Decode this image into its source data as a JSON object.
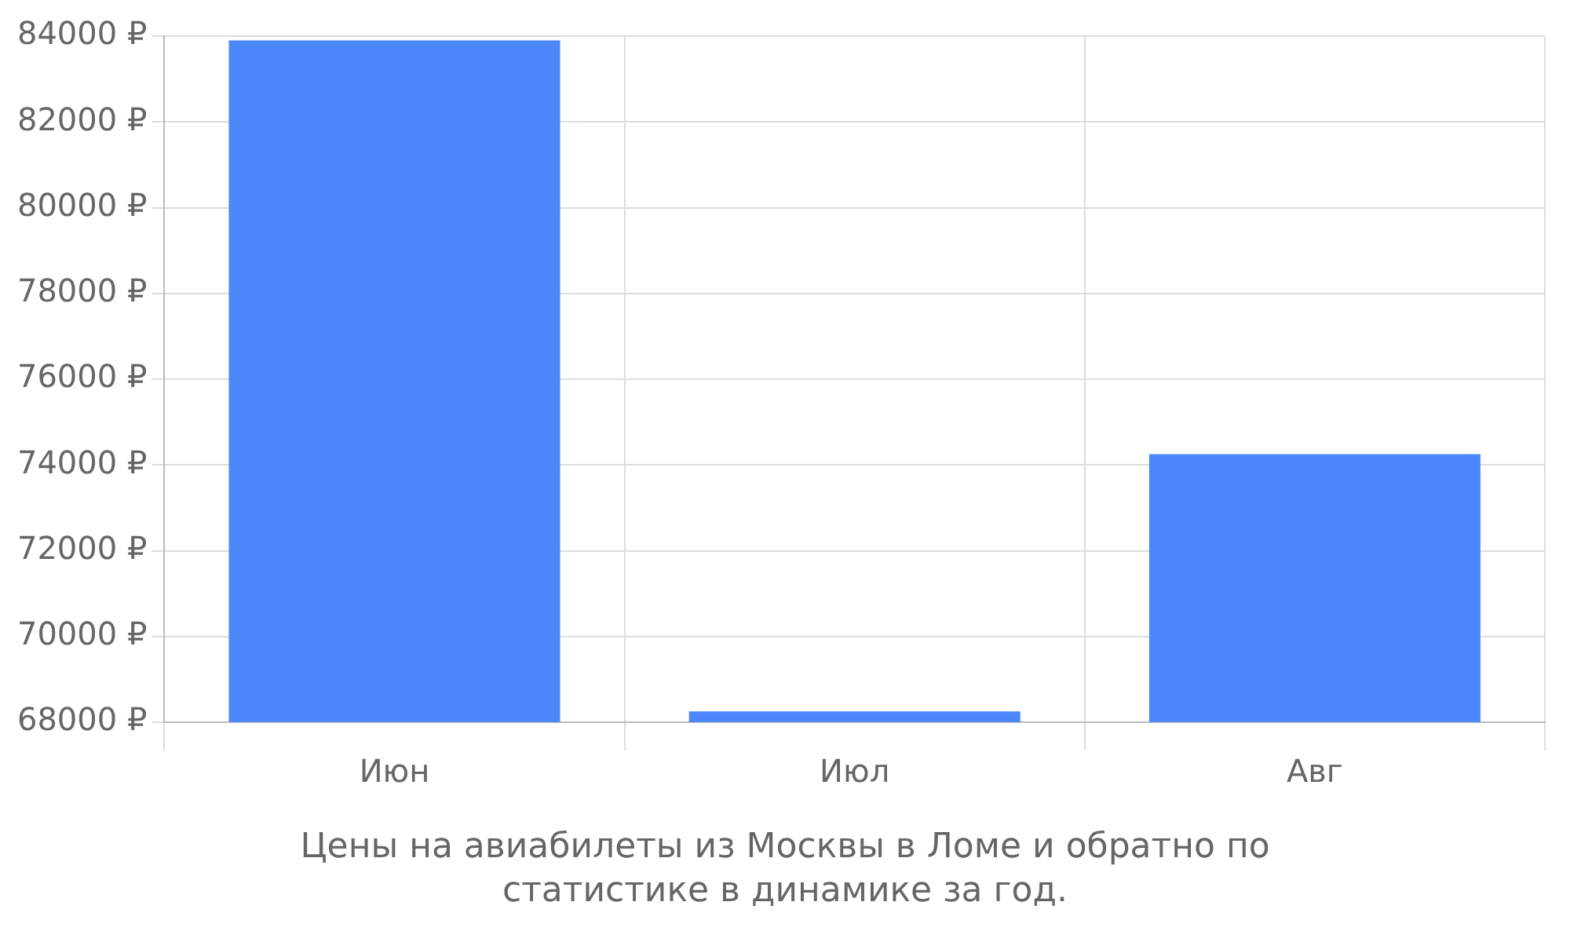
{
  "chart_data": {
    "type": "bar",
    "categories": [
      "Июн",
      "Июл",
      "Авг"
    ],
    "values": [
      83900,
      68250,
      74250
    ],
    "color": "#4d88fb",
    "ylim": [
      68000,
      84000
    ],
    "yticks": [
      {
        "value": 68000,
        "label": "68000 ₽"
      },
      {
        "value": 70000,
        "label": "70000 ₽"
      },
      {
        "value": 72000,
        "label": "72000 ₽"
      },
      {
        "value": 74000,
        "label": "74000 ₽"
      },
      {
        "value": 76000,
        "label": "76000 ₽"
      },
      {
        "value": 78000,
        "label": "78000 ₽"
      },
      {
        "value": 80000,
        "label": "80000 ₽"
      },
      {
        "value": 82000,
        "label": "82000 ₽"
      },
      {
        "value": 84000,
        "label": "84000 ₽"
      }
    ],
    "grid": true,
    "annotations": [
      "Цены на авиабилеты из Москвы в Ломе и обратно по статистике в динамике за год."
    ]
  }
}
